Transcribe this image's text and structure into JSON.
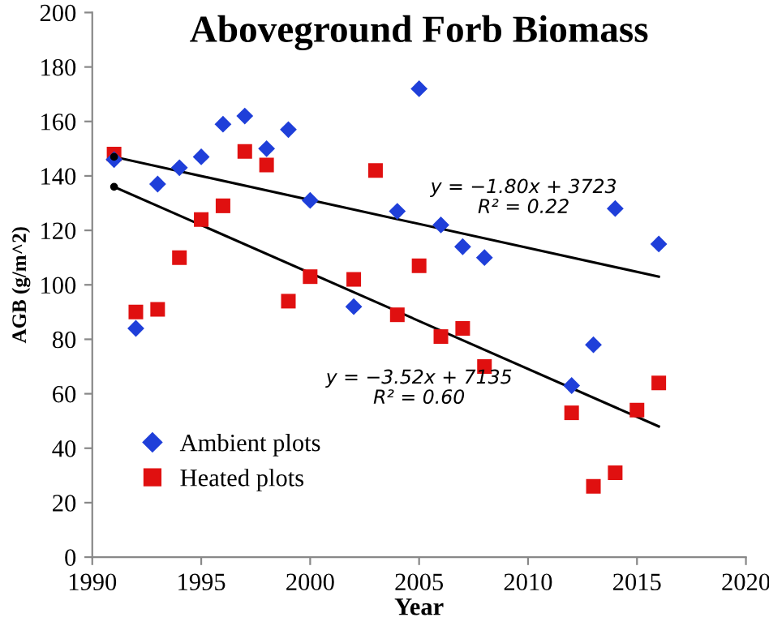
{
  "chart_data": {
    "type": "scatter",
    "title": "Aboveground Forb Biomass",
    "xlabel": "Year",
    "ylabel": "AGB (g/m^2)",
    "xlim": [
      1990,
      2020
    ],
    "xticks": [
      1990,
      1995,
      2000,
      2005,
      2010,
      2015,
      2020
    ],
    "ylim": [
      0,
      200
    ],
    "yticks": [
      0,
      20,
      40,
      60,
      80,
      100,
      120,
      140,
      160,
      180,
      200
    ],
    "grid": false,
    "legend": "bottom left",
    "series": [
      {
        "name": "Ambient plots",
        "color": "#1f3fd9",
        "marker": "diamond",
        "x": [
          1991,
          1992,
          1993,
          1994,
          1995,
          1996,
          1997,
          1998,
          1999,
          2000,
          2002,
          2004,
          2005,
          2006,
          2007,
          2008,
          2012,
          2013,
          2014,
          2016
        ],
        "values": [
          146,
          84,
          137,
          143,
          147,
          159,
          162,
          150,
          157,
          131,
          92,
          127,
          172,
          122,
          114,
          110,
          63,
          78,
          128,
          115
        ]
      },
      {
        "name": "Heated plots",
        "color": "#e01010",
        "marker": "square",
        "x": [
          1991,
          1992,
          1993,
          1994,
          1995,
          1996,
          1997,
          1998,
          1999,
          2000,
          2002,
          2003,
          2004,
          2005,
          2006,
          2007,
          2008,
          2012,
          2013,
          2014,
          2015,
          2016
        ],
        "values": [
          148,
          90,
          91,
          110,
          124,
          129,
          149,
          144,
          94,
          103,
          102,
          142,
          89,
          107,
          81,
          84,
          70,
          53,
          26,
          31,
          54,
          64
        ]
      },
      {
        "type": "line",
        "color": "#000000",
        "marker": "none",
        "x": [
          1991,
          2016
        ],
        "values": [
          147,
          103
        ]
      },
      {
        "type": "line",
        "color": "#000000",
        "marker": "none",
        "x": [
          1991,
          2016
        ],
        "values": [
          136,
          48
        ]
      }
    ],
    "annotations": [
      "y = −1.80x + 3723\nR² = 0.22",
      "y = −3.52x + 7135\nR² = 0.60"
    ]
  }
}
